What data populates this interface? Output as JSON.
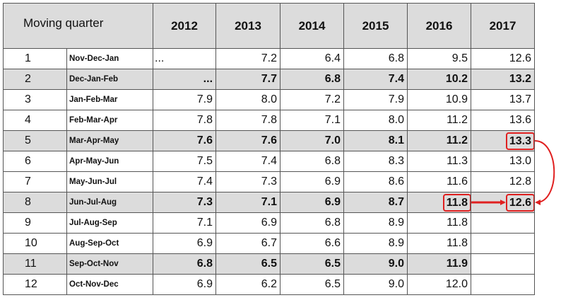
{
  "table": {
    "header": {
      "corner": "Moving quarter",
      "years": [
        "2012",
        "2013",
        "2014",
        "2015",
        "2016",
        "2017"
      ]
    },
    "rows": [
      {
        "num": "1",
        "label": "Nov-Dec-Jan",
        "values": [
          "...",
          "7.2",
          "6.4",
          "6.8",
          "9.5",
          "12.6"
        ],
        "shaded": false,
        "bold": false
      },
      {
        "num": "2",
        "label": "Dec-Jan-Feb",
        "values": [
          "...",
          "7.7",
          "6.8",
          "7.4",
          "10.2",
          "13.2"
        ],
        "shaded": true,
        "bold": true
      },
      {
        "num": "3",
        "label": "Jan-Feb-Mar",
        "values": [
          "7.9",
          "8.0",
          "7.2",
          "7.9",
          "10.9",
          "13.7"
        ],
        "shaded": false,
        "bold": false
      },
      {
        "num": "4",
        "label": "Feb-Mar-Apr",
        "values": [
          "7.8",
          "7.8",
          "7.1",
          "8.0",
          "11.2",
          "13.6"
        ],
        "shaded": false,
        "bold": false
      },
      {
        "num": "5",
        "label": "Mar-Apr-May",
        "values": [
          "7.6",
          "7.6",
          "7.0",
          "8.1",
          "11.2",
          "13.3"
        ],
        "shaded": true,
        "bold": true
      },
      {
        "num": "6",
        "label": "Apr-May-Jun",
        "values": [
          "7.5",
          "7.4",
          "6.8",
          "8.3",
          "11.3",
          "13.0"
        ],
        "shaded": false,
        "bold": false
      },
      {
        "num": "7",
        "label": "May-Jun-Jul",
        "values": [
          "7.4",
          "7.3",
          "6.9",
          "8.6",
          "11.6",
          "12.8"
        ],
        "shaded": false,
        "bold": false
      },
      {
        "num": "8",
        "label": "Jun-Jul-Aug",
        "values": [
          "7.3",
          "7.1",
          "6.9",
          "8.7",
          "11.8",
          "12.6"
        ],
        "shaded": true,
        "bold": true
      },
      {
        "num": "9",
        "label": "Jul-Aug-Sep",
        "values": [
          "7.1",
          "6.9",
          "6.8",
          "8.9",
          "11.8",
          ""
        ],
        "shaded": false,
        "bold": false
      },
      {
        "num": "10",
        "label": "Aug-Sep-Oct",
        "values": [
          "6.9",
          "6.7",
          "6.6",
          "8.9",
          "11.8",
          ""
        ],
        "shaded": false,
        "bold": false
      },
      {
        "num": "11",
        "label": "Sep-Oct-Nov",
        "values": [
          "6.8",
          "6.5",
          "6.5",
          "9.0",
          "11.9",
          ""
        ],
        "shaded": true,
        "bold": true
      },
      {
        "num": "12",
        "label": "Oct-Nov-Dec",
        "values": [
          "6.9",
          "6.2",
          "6.5",
          "9.0",
          "12.0",
          ""
        ],
        "shaded": false,
        "bold": false
      }
    ]
  },
  "highlights": [
    {
      "row": 5,
      "col": 6
    },
    {
      "row": 8,
      "col": 5
    },
    {
      "row": 8,
      "col": 6
    }
  ],
  "colors": {
    "highlight": "#e02020",
    "shade": "#dcdcdc"
  }
}
